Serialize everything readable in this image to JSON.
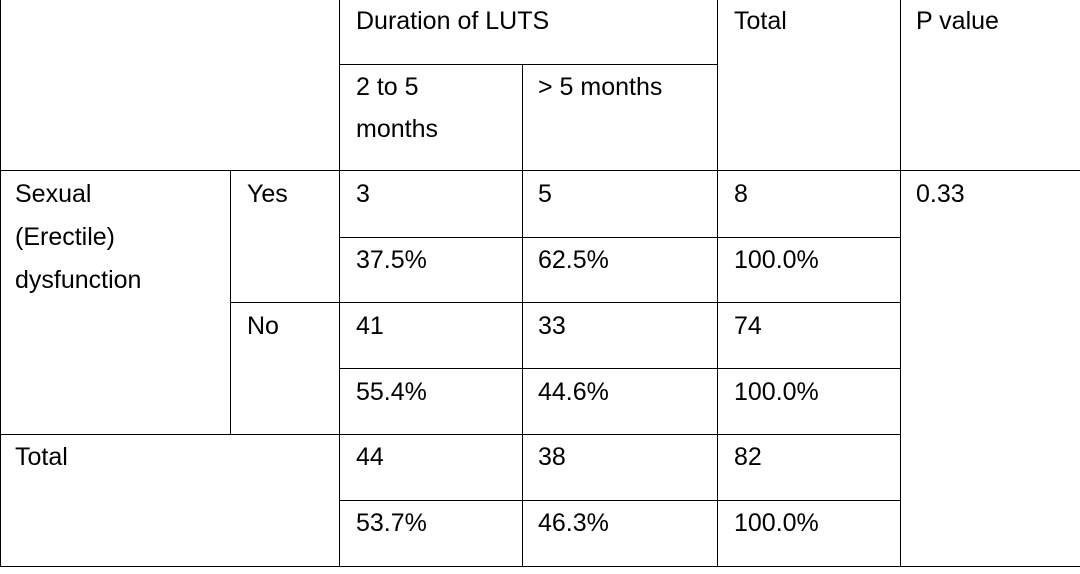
{
  "header": {
    "duration_group": "Duration of LUTS",
    "total": "Total",
    "p_value": "P value",
    "col_2_to_5_line1": "2 to 5",
    "col_2_to_5_line2": "months",
    "col_gt_5": "> 5 months"
  },
  "rows": {
    "group_label_line1": "Sexual",
    "group_label_line2": "(Erectile)",
    "group_label_line3": "dysfunction",
    "yes": {
      "label": "Yes",
      "count": [
        "3",
        "5",
        "8"
      ],
      "percent": [
        "37.5%",
        "62.5%",
        "100.0%"
      ]
    },
    "no": {
      "label": "No",
      "count": [
        "41",
        "33",
        "74"
      ],
      "percent": [
        "55.4%",
        "44.6%",
        "100.0%"
      ]
    },
    "total": {
      "label": "Total",
      "count": [
        "44",
        "38",
        "82"
      ],
      "percent": [
        "53.7%",
        "46.3%",
        "100.0%"
      ]
    },
    "p_value": "0.33"
  }
}
